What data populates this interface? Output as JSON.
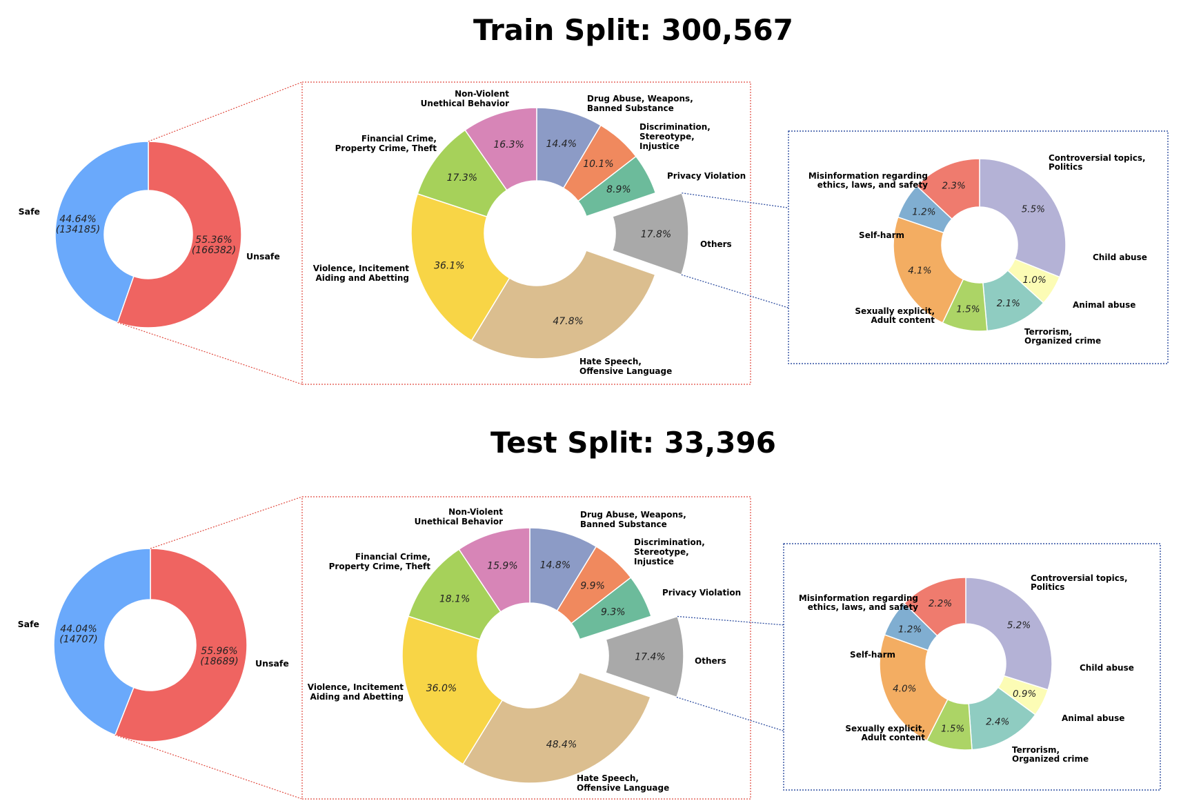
{
  "chart_data": [
    {
      "panel": "train",
      "title": "Train Split: 300,567",
      "charts": [
        {
          "type": "pie",
          "name": "safety",
          "slices": [
            {
              "label": "Unsafe",
              "value": 55.36,
              "pct_text": "55.36%",
              "count_text": "(166382)",
              "color": "#ef6461"
            },
            {
              "label": "Safe",
              "value": 44.64,
              "pct_text": "44.64%",
              "count_text": "(134185)",
              "color": "#6aa9fb"
            }
          ]
        },
        {
          "type": "pie",
          "name": "unsafe-categories",
          "slices": [
            {
              "label": "Drug Abuse, Weapons, Banned Substance",
              "value": 14.4,
              "pct_text": "14.4%",
              "color": "#8c9bc6"
            },
            {
              "label": "Discrimination, Stereotype, Injustice",
              "value": 10.1,
              "pct_text": "10.1%",
              "color": "#f0895e"
            },
            {
              "label": "Privacy Violation",
              "value": 8.9,
              "pct_text": "8.9%",
              "color": "#6cbb9b"
            },
            {
              "label": "Others",
              "value": 17.8,
              "pct_text": "17.8%",
              "color": "#a9a9a9"
            },
            {
              "label": "Hate Speech, Offensive Language",
              "value": 47.8,
              "pct_text": "47.8%",
              "color": "#dbbe8f"
            },
            {
              "label": "Violence, Incitement Aiding and Abetting",
              "value": 36.1,
              "pct_text": "36.1%",
              "color": "#f8d546"
            },
            {
              "label": "Financial Crime, Property Crime, Theft",
              "value": 17.3,
              "pct_text": "17.3%",
              "color": "#a6d15a"
            },
            {
              "label": "Non-Violent Unethical Behavior",
              "value": 16.3,
              "pct_text": "16.3%",
              "color": "#d785b7"
            }
          ]
        },
        {
          "type": "pie",
          "name": "others-breakdown",
          "slices": [
            {
              "label": "Controversial topics, Politics",
              "value": 5.5,
              "pct_text": "5.5%",
              "color": "#b4b2d6"
            },
            {
              "label": "Child abuse",
              "value": 1.0,
              "pct_text": "1.0%",
              "color": "#fcfcb5"
            },
            {
              "label": "Animal abuse",
              "value": 2.1,
              "pct_text": "2.1%",
              "color": "#8fccc1"
            },
            {
              "label": "Terrorism, Organized crime",
              "value": 1.5,
              "pct_text": "1.5%",
              "color": "#acd466"
            },
            {
              "label": "Sexually explicit, Adult content",
              "value": 4.1,
              "pct_text": "4.1%",
              "color": "#f3ad62"
            },
            {
              "label": "Self-harm",
              "value": 1.2,
              "pct_text": "1.2%",
              "color": "#80aed1"
            },
            {
              "label": "Misinformation regarding ethics, laws, and safety",
              "value": 2.3,
              "pct_text": "2.3%",
              "color": "#ef7b6e"
            }
          ]
        }
      ]
    },
    {
      "panel": "test",
      "title": "Test Split: 33,396",
      "charts": [
        {
          "type": "pie",
          "name": "safety",
          "slices": [
            {
              "label": "Unsafe",
              "value": 55.96,
              "pct_text": "55.96%",
              "count_text": "(18689)",
              "color": "#ef6461"
            },
            {
              "label": "Safe",
              "value": 44.04,
              "pct_text": "44.04%",
              "count_text": "(14707)",
              "color": "#6aa9fb"
            }
          ]
        },
        {
          "type": "pie",
          "name": "unsafe-categories",
          "slices": [
            {
              "label": "Drug Abuse, Weapons, Banned Substance",
              "value": 14.8,
              "pct_text": "14.8%",
              "color": "#8c9bc6"
            },
            {
              "label": "Discrimination, Stereotype, Injustice",
              "value": 9.9,
              "pct_text": "9.9%",
              "color": "#f0895e"
            },
            {
              "label": "Privacy Violation",
              "value": 9.3,
              "pct_text": "9.3%",
              "color": "#6cbb9b"
            },
            {
              "label": "Others",
              "value": 17.4,
              "pct_text": "17.4%",
              "color": "#a9a9a9"
            },
            {
              "label": "Hate Speech, Offensive Language",
              "value": 48.4,
              "pct_text": "48.4%",
              "color": "#dbbe8f"
            },
            {
              "label": "Violence, Incitement Aiding and Abetting",
              "value": 36.0,
              "pct_text": "36.0%",
              "color": "#f8d546"
            },
            {
              "label": "Financial Crime, Property Crime, Theft",
              "value": 18.1,
              "pct_text": "18.1%",
              "color": "#a6d15a"
            },
            {
              "label": "Non-Violent Unethical Behavior",
              "value": 15.9,
              "pct_text": "15.9%",
              "color": "#d785b7"
            }
          ]
        },
        {
          "type": "pie",
          "name": "others-breakdown",
          "slices": [
            {
              "label": "Controversial topics, Politics",
              "value": 5.2,
              "pct_text": "5.2%",
              "color": "#b4b2d6"
            },
            {
              "label": "Child abuse",
              "value": 0.9,
              "pct_text": "0.9%",
              "color": "#fcfcb5"
            },
            {
              "label": "Animal abuse",
              "value": 2.4,
              "pct_text": "2.4%",
              "color": "#8fccc1"
            },
            {
              "label": "Terrorism, Organized crime",
              "value": 1.5,
              "pct_text": "1.5%",
              "color": "#acd466"
            },
            {
              "label": "Sexually explicit, Adult content",
              "value": 4.0,
              "pct_text": "4.0%",
              "color": "#f3ad62"
            },
            {
              "label": "Self-harm",
              "value": 1.2,
              "pct_text": "1.2%",
              "color": "#80aed1"
            },
            {
              "label": "Misinformation regarding ethics, laws, and safety",
              "value": 2.2,
              "pct_text": "2.2%",
              "color": "#ef7b6e"
            }
          ]
        }
      ]
    }
  ],
  "colors": {
    "connector_red": "#e0483d",
    "connector_blue": "#2f4ea0"
  }
}
